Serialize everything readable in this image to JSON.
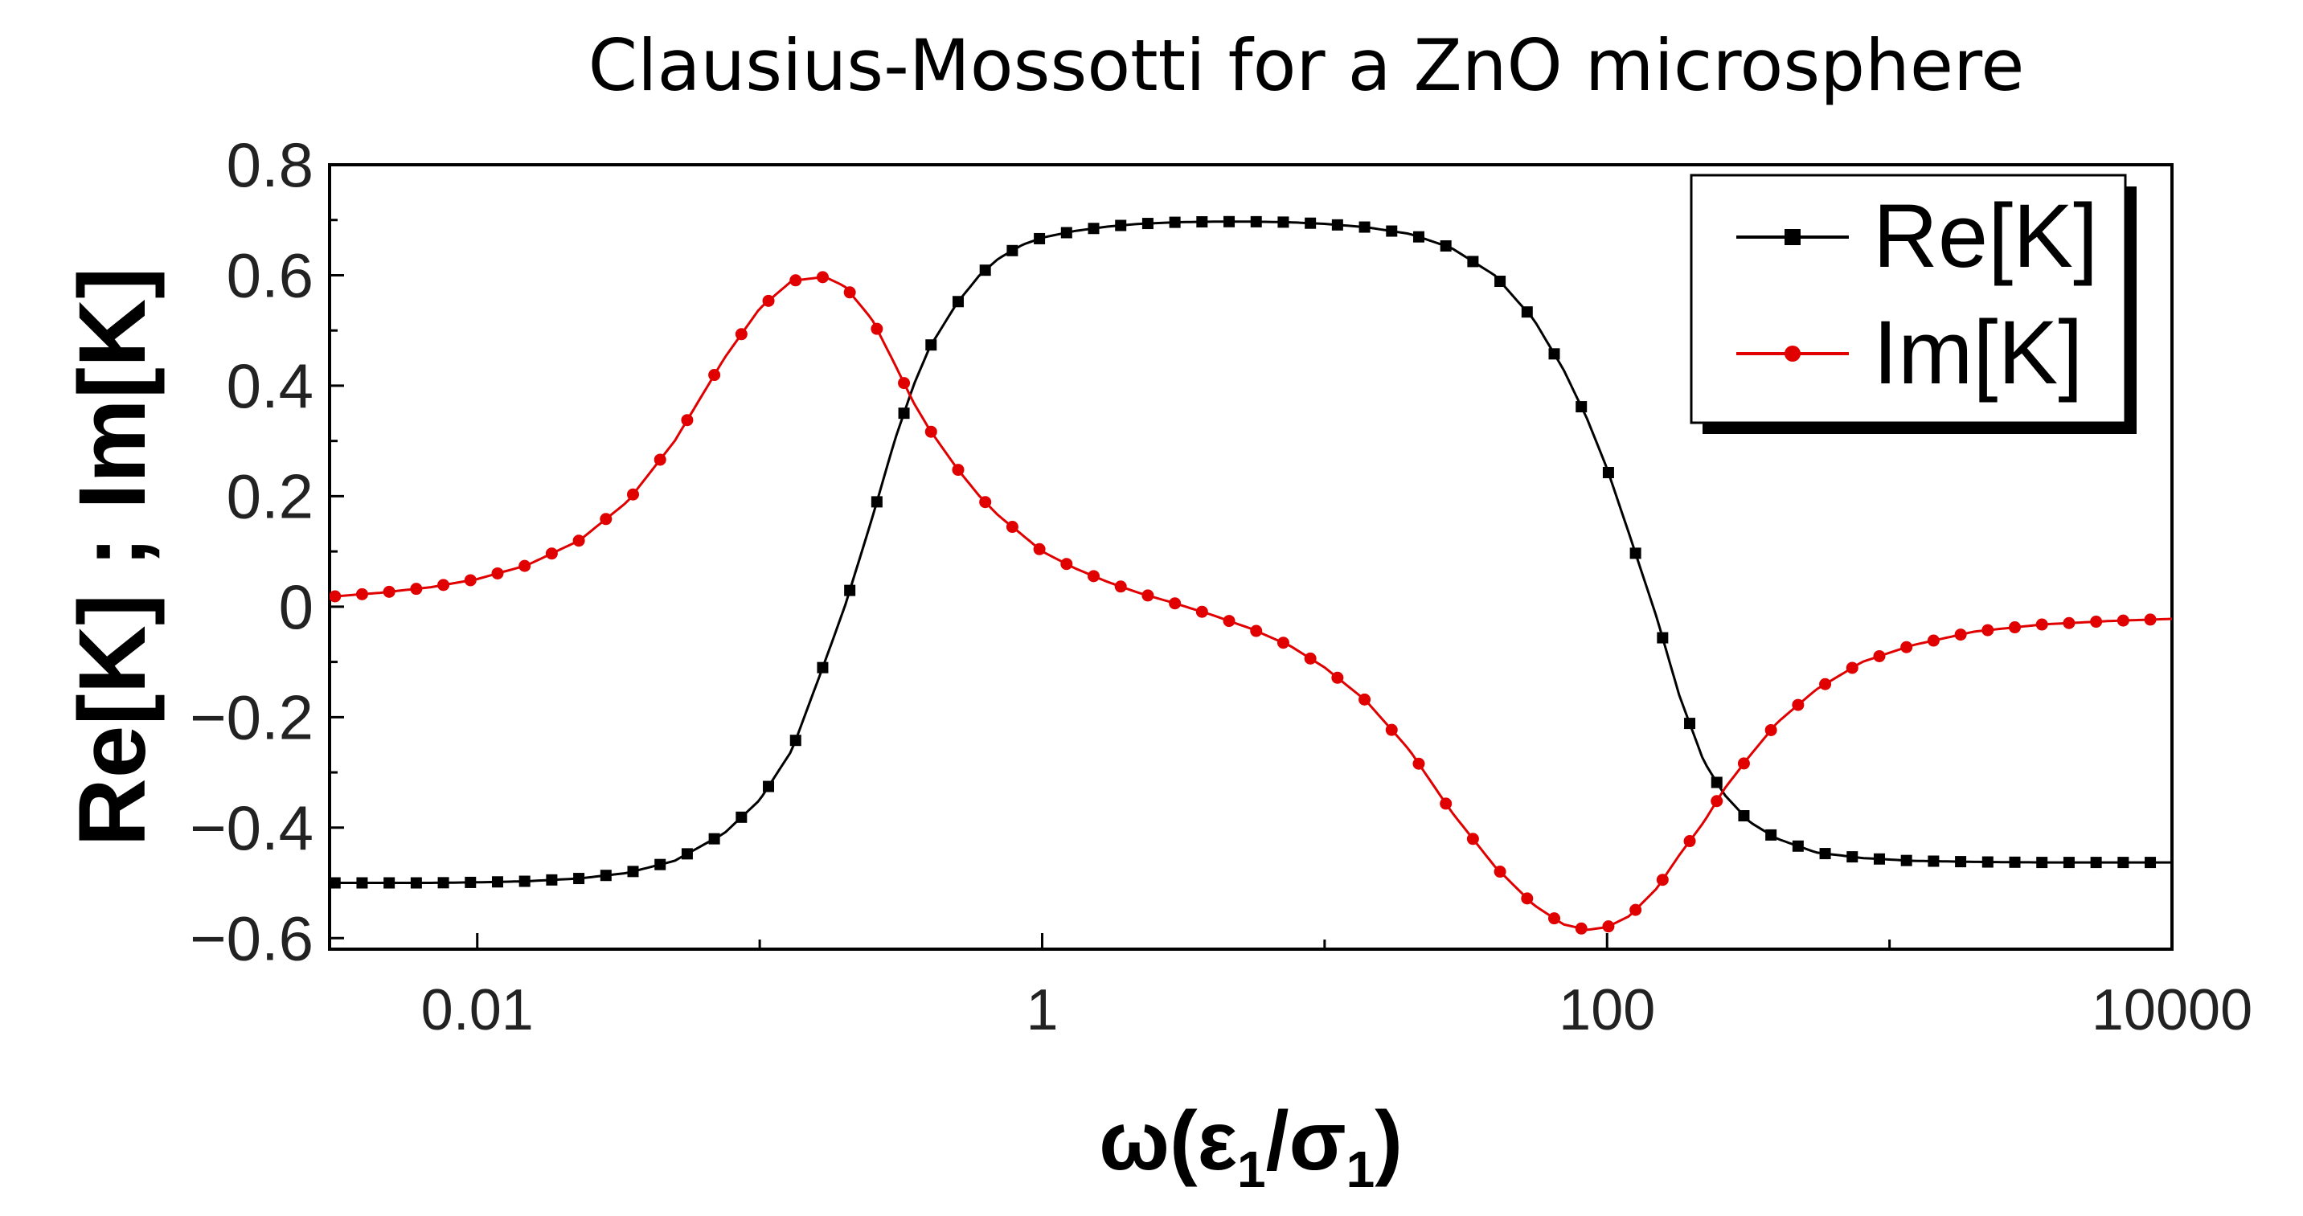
{
  "chart_data": {
    "type": "line",
    "title": "Clausius-Mossotti for a ZnO microsphere",
    "xlabel": "ω(ε₁/σ₁)",
    "xlabel_parts": {
      "base": "ω(ε",
      "sub1": "1",
      "mid": "/σ",
      "sub2": "1",
      "end": ")"
    },
    "ylabel": "Re[K] ; Im[K]",
    "xscale": "log",
    "xlim": [
      0.003,
      10000
    ],
    "ylim": [
      -0.62,
      0.8
    ],
    "xticks": [
      0.01,
      1,
      100,
      10000
    ],
    "xtick_labels": [
      "0.01",
      "1",
      "100",
      "10000"
    ],
    "yticks": [
      0.8,
      0.6,
      0.4,
      0.2,
      0,
      -0.2,
      -0.4,
      -0.6
    ],
    "ytick_labels": [
      "0.8",
      "0.6",
      "0.4",
      "0.2",
      "0",
      "−0.2",
      "−0.4",
      "−0.6"
    ],
    "legend_position": "top-right",
    "series": [
      {
        "name": "Re[K]",
        "color": "#000000",
        "marker": "square",
        "x": [
          0.003,
          0.0045,
          0.0068,
          0.01,
          0.015,
          0.023,
          0.034,
          0.05,
          0.075,
          0.1,
          0.13,
          0.17,
          0.2,
          0.25,
          0.3,
          0.35,
          0.4,
          0.5,
          0.6,
          0.7,
          0.85,
          1,
          1.3,
          1.7,
          2.2,
          3,
          4,
          5.5,
          7.5,
          10,
          14,
          20,
          28,
          40,
          55,
          70,
          85,
          100,
          120,
          150,
          180,
          220,
          260,
          320,
          400,
          550,
          800,
          1200,
          2000,
          3500,
          6000,
          10000
        ],
        "y": [
          -0.5,
          -0.5,
          -0.5,
          -0.499,
          -0.497,
          -0.492,
          -0.482,
          -0.46,
          -0.41,
          -0.35,
          -0.26,
          -0.1,
          0.0,
          0.16,
          0.3,
          0.4,
          0.47,
          0.55,
          0.6,
          0.63,
          0.655,
          0.668,
          0.68,
          0.688,
          0.693,
          0.696,
          0.697,
          0.697,
          0.696,
          0.693,
          0.687,
          0.675,
          0.65,
          0.6,
          0.52,
          0.43,
          0.34,
          0.25,
          0.13,
          -0.02,
          -0.16,
          -0.28,
          -0.34,
          -0.39,
          -0.42,
          -0.445,
          -0.455,
          -0.46,
          -0.462,
          -0.463,
          -0.463,
          -0.463
        ]
      },
      {
        "name": "Im[K]",
        "color": "#e00000",
        "marker": "circle",
        "x": [
          0.003,
          0.0045,
          0.0068,
          0.01,
          0.015,
          0.023,
          0.034,
          0.05,
          0.075,
          0.1,
          0.13,
          0.17,
          0.2,
          0.25,
          0.3,
          0.35,
          0.4,
          0.5,
          0.6,
          0.7,
          0.85,
          1,
          1.3,
          1.7,
          2.2,
          3,
          4,
          5.5,
          7.5,
          10,
          14,
          20,
          28,
          40,
          55,
          70,
          85,
          100,
          120,
          150,
          180,
          220,
          260,
          320,
          400,
          550,
          800,
          1200,
          2000,
          3500,
          6000,
          10000
        ],
        "y": [
          0.018,
          0.025,
          0.035,
          0.05,
          0.075,
          0.12,
          0.19,
          0.3,
          0.45,
          0.54,
          0.59,
          0.597,
          0.58,
          0.52,
          0.44,
          0.37,
          0.32,
          0.25,
          0.2,
          0.165,
          0.13,
          0.1,
          0.07,
          0.045,
          0.025,
          0.005,
          -0.015,
          -0.04,
          -0.07,
          -0.11,
          -0.17,
          -0.26,
          -0.37,
          -0.47,
          -0.54,
          -0.575,
          -0.585,
          -0.58,
          -0.56,
          -0.51,
          -0.45,
          -0.39,
          -0.33,
          -0.27,
          -0.21,
          -0.15,
          -0.1,
          -0.07,
          -0.045,
          -0.032,
          -0.026,
          -0.022
        ]
      }
    ]
  }
}
